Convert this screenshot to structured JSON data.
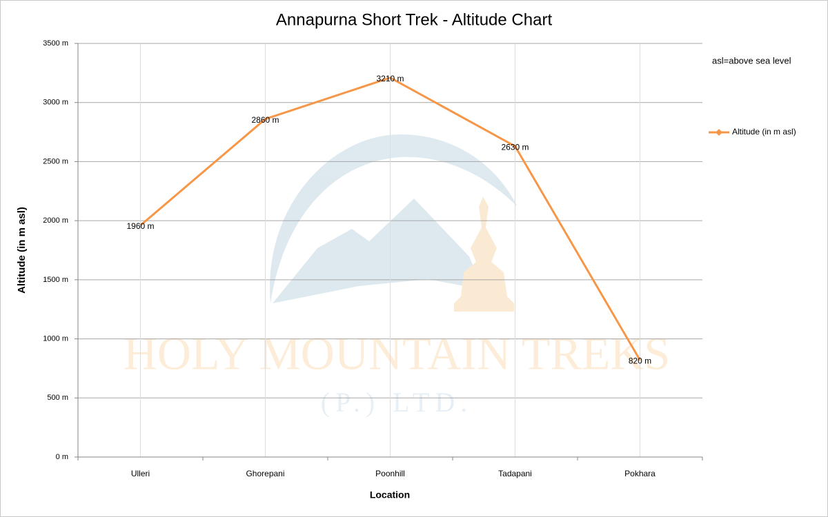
{
  "chart_data": {
    "type": "line",
    "title": "Annapurna Short Trek - Altitude Chart",
    "x_label": "Location",
    "y_label": "Altitude (in m asl)",
    "annotation": "asl=above sea level",
    "categories": [
      "Ulleri",
      "Ghorepani",
      "Poonhill",
      "Tadapani",
      "Pokhara"
    ],
    "series": [
      {
        "name": "Altitude (in m asl)",
        "color": "#f79646",
        "values": [
          1960,
          2860,
          3210,
          2630,
          820
        ],
        "value_labels": [
          "1960 m",
          "2860 m",
          "3210 m",
          "2630 m",
          "820 m"
        ]
      }
    ],
    "ylim": [
      0,
      3500
    ],
    "yticks": [
      {
        "value": 0,
        "label": "0 m"
      },
      {
        "value": 500,
        "label": "500 m"
      },
      {
        "value": 1000,
        "label": "1000 m"
      },
      {
        "value": 1500,
        "label": "1500 m"
      },
      {
        "value": 2000,
        "label": "2000 m"
      },
      {
        "value": 2500,
        "label": "2500 m"
      },
      {
        "value": 3000,
        "label": "3000 m"
      },
      {
        "value": 3500,
        "label": "3500 m"
      }
    ],
    "grid": true,
    "legend": "right",
    "watermark": {
      "text": "HOLY MOUNTAIN TREKS",
      "subtext": "(P.) LTD."
    }
  }
}
